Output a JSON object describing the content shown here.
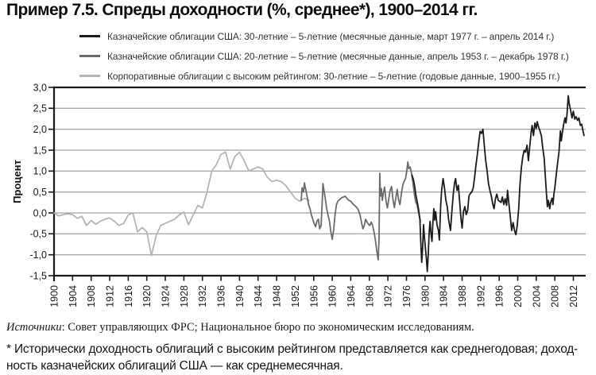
{
  "title": "Пример 7.5. Спреды доходности (%, среднее*), 1900–2014 гг.",
  "legend": [
    {
      "label": "Казначейские облигации США: 30-летние – 5-летние (месячные данные, март 1977 г. – апрель 2014 г.)",
      "color": "#1b1b1b"
    },
    {
      "label": "Казначейские облигации США: 20-летние – 5-летние (месячные данные, апрель 1953 г. – декабрь 1978 г.)",
      "color": "#6b6b6b"
    },
    {
      "label": "Корпоративные облигации с высоким рейтингом: 30-летние – 5-летние (годовые данные, 1900–1955 гг.)",
      "color": "#b5b5b5"
    }
  ],
  "source": {
    "prefix": "Источники",
    "text": ": Совет управляющих ФРС; Национальное бюро по экономическим исследованиям."
  },
  "footnote": {
    "line1": "* Исторически доходность облигаций с высоким рейтингом представляется как среднегодовая; доход-",
    "line2": "ность казначейских облигаций США — как среднемесячная."
  },
  "chart_data": {
    "type": "line",
    "title": "Пример 7.5. Спреды доходности (%, среднее*), 1900–2014 гг.",
    "xlabel": "",
    "ylabel": "Процент",
    "ylim": [
      -1.5,
      3.0
    ],
    "xlim": [
      1900,
      2014.5
    ],
    "grid": true,
    "legend_position": "top",
    "y_tick_values": [
      3.0,
      2.5,
      2.0,
      1.5,
      1.0,
      0.5,
      0.0,
      -0.5,
      -1.0,
      -1.5
    ],
    "y_tick_labels": [
      "3,0",
      "2,5",
      "2,0",
      "1,5",
      "1,0",
      "0,5",
      "0,0",
      "-0,5",
      "-1,0",
      "-1,5"
    ],
    "x_ticks": [
      1900,
      1904,
      1908,
      1912,
      1916,
      1920,
      1924,
      1928,
      1932,
      1936,
      1940,
      1944,
      1948,
      1952,
      1956,
      1960,
      1964,
      1968,
      1972,
      1976,
      1980,
      1984,
      1988,
      1992,
      1996,
      2000,
      2004,
      2008,
      2012
    ],
    "series": [
      {
        "id": "corporate-30y-5y",
        "name": "Корпоративные облигации с высоким рейтингом: 30-летние – 5-летние (годовые данные, 1900–1955 гг.)",
        "color": "#b5b5b5",
        "x": [
          1900,
          1901,
          1902,
          1903,
          1904,
          1905,
          1906,
          1907,
          1908,
          1909,
          1910,
          1911,
          1912,
          1913,
          1914,
          1915,
          1916,
          1917,
          1918,
          1919,
          1920,
          1921,
          1922,
          1923,
          1924,
          1925,
          1926,
          1927,
          1928,
          1929,
          1930,
          1931,
          1932,
          1933,
          1934,
          1935,
          1936,
          1937,
          1938,
          1939,
          1940,
          1941,
          1942,
          1943,
          1944,
          1945,
          1946,
          1947,
          1948,
          1949,
          1950,
          1951,
          1952,
          1953,
          1954,
          1955
        ],
        "y": [
          0.0,
          -0.07,
          -0.04,
          -0.02,
          -0.04,
          -0.13,
          -0.08,
          -0.3,
          -0.18,
          -0.27,
          -0.2,
          -0.15,
          -0.12,
          -0.2,
          -0.3,
          -0.25,
          -0.05,
          0.0,
          -0.45,
          -0.35,
          -0.45,
          -1.02,
          -0.55,
          -0.3,
          -0.25,
          -0.2,
          -0.15,
          -0.05,
          0.02,
          -0.28,
          -0.05,
          0.18,
          0.12,
          0.5,
          1.0,
          1.15,
          1.4,
          1.45,
          1.05,
          1.35,
          1.45,
          1.25,
          1.0,
          1.05,
          1.1,
          1.05,
          0.85,
          0.75,
          0.78,
          0.75,
          0.65,
          0.5,
          0.35,
          0.28,
          0.35,
          0.3
        ]
      },
      {
        "id": "treasury-20y-5y",
        "name": "Казначейские облигации США: 20-летние – 5-летние (месячные данные, апрель 1953 г. – декабрь 1978 г.)",
        "color": "#6b6b6b",
        "x": [
          1953.3,
          1953.5,
          1953.8,
          1954.0,
          1954.3,
          1954.6,
          1954.9,
          1955.2,
          1955.5,
          1955.8,
          1956.1,
          1956.4,
          1956.7,
          1957.0,
          1957.3,
          1957.6,
          1957.9,
          1958.0,
          1958.2,
          1958.5,
          1958.8,
          1959.1,
          1959.4,
          1959.7,
          1960.0,
          1960.3,
          1960.6,
          1960.9,
          1961.2,
          1961.6,
          1962.0,
          1962.4,
          1962.8,
          1963.2,
          1963.6,
          1964.0,
          1964.4,
          1964.8,
          1965.2,
          1965.6,
          1966.0,
          1966.3,
          1966.6,
          1966.9,
          1967.2,
          1967.5,
          1967.8,
          1968.1,
          1968.4,
          1968.7,
          1969.0,
          1969.3,
          1969.6,
          1969.9,
          1970.1,
          1970.25,
          1970.4,
          1970.6,
          1970.8,
          1971.0,
          1971.3,
          1971.6,
          1971.9,
          1972.2,
          1972.5,
          1972.8,
          1973.1,
          1973.4,
          1973.7,
          1974.0,
          1974.3,
          1974.6,
          1974.9,
          1975.2,
          1975.5,
          1975.8,
          1976.1,
          1976.3,
          1976.5,
          1976.8,
          1977.1,
          1977.4,
          1977.7,
          1978.0,
          1978.3,
          1978.6,
          1979.0
        ],
        "y": [
          0.3,
          0.6,
          0.5,
          0.72,
          0.55,
          0.38,
          0.2,
          0.1,
          -0.05,
          -0.15,
          -0.25,
          -0.33,
          -0.2,
          -0.15,
          -0.38,
          -0.3,
          0.4,
          0.7,
          0.55,
          0.35,
          0.1,
          -0.05,
          -0.2,
          -0.45,
          -0.63,
          -0.4,
          -0.05,
          0.2,
          0.28,
          0.32,
          0.36,
          0.38,
          0.4,
          0.34,
          0.3,
          0.28,
          0.22,
          0.18,
          0.14,
          0.08,
          -0.05,
          -0.22,
          -0.38,
          -0.3,
          -0.15,
          -0.22,
          -0.27,
          -0.3,
          -0.22,
          -0.3,
          -0.45,
          -0.65,
          -0.9,
          -1.12,
          -0.6,
          0.95,
          0.4,
          0.58,
          0.3,
          0.45,
          0.62,
          0.28,
          0.12,
          0.35,
          0.55,
          0.63,
          0.32,
          0.13,
          0.35,
          0.56,
          0.32,
          0.2,
          0.45,
          0.66,
          0.75,
          0.82,
          1.02,
          1.22,
          1.06,
          1.1,
          0.94,
          0.72,
          0.45,
          0.26,
          0.2,
          0.02,
          -0.19
        ]
      },
      {
        "id": "treasury-30y-5y",
        "name": "Казначейские облигации США: 30-летние – 5-летние (месячные данные, март 1977 г. – апрель 2014 г.)",
        "color": "#1b1b1b",
        "x": [
          1977.2,
          1977.5,
          1977.8,
          1978.0,
          1978.3,
          1978.6,
          1978.9,
          1979.1,
          1979.3,
          1979.5,
          1979.7,
          1979.9,
          1980.1,
          1980.3,
          1980.5,
          1980.7,
          1980.9,
          1981.1,
          1981.3,
          1981.5,
          1981.7,
          1981.9,
          1982.1,
          1982.3,
          1982.6,
          1982.9,
          1983.1,
          1983.4,
          1983.6,
          1983.9,
          1984.2,
          1984.5,
          1984.8,
          1985.1,
          1985.5,
          1985.8,
          1986.1,
          1986.4,
          1986.6,
          1986.9,
          1987.2,
          1987.5,
          1987.8,
          1988.0,
          1988.3,
          1988.6,
          1988.9,
          1989.2,
          1989.5,
          1989.8,
          1990.1,
          1990.4,
          1990.7,
          1991.0,
          1991.3,
          1991.6,
          1991.9,
          1992.2,
          1992.5,
          1992.8,
          1993.1,
          1993.4,
          1993.7,
          1994.0,
          1994.3,
          1994.6,
          1994.9,
          1995.2,
          1995.5,
          1995.8,
          1996.1,
          1996.4,
          1996.7,
          1997.0,
          1997.3,
          1997.6,
          1997.8,
          1998.1,
          1998.4,
          1998.7,
          1999.0,
          1999.3,
          1999.6,
          1999.9,
          2000.2,
          2000.5,
          2000.8,
          2001.1,
          2001.4,
          2001.7,
          2002.0,
          2002.3,
          2002.6,
          2002.9,
          2003.1,
          2003.4,
          2003.7,
          2004.0,
          2004.2,
          2004.5,
          2004.8,
          2005.1,
          2005.4,
          2005.7,
          2006.0,
          2006.2,
          2006.4,
          2006.6,
          2006.9,
          2007.1,
          2007.4,
          2007.6,
          2007.8,
          2008.0,
          2008.3,
          2008.6,
          2008.9,
          2009.2,
          2009.4,
          2009.6,
          2009.9,
          2010.2,
          2010.4,
          2010.6,
          2010.9,
          2011.1,
          2011.4,
          2011.7,
          2012.0,
          2012.3,
          2012.6,
          2012.9,
          2013.2,
          2013.5,
          2013.8,
          2014.0,
          2014.3
        ],
        "y": [
          0.9,
          0.8,
          0.62,
          0.45,
          0.28,
          0.1,
          -0.15,
          -0.7,
          -1.18,
          -0.8,
          -0.28,
          -0.6,
          -0.85,
          -1.1,
          -1.4,
          -1.0,
          -0.45,
          -0.2,
          -0.5,
          -0.68,
          -0.25,
          0.1,
          -0.17,
          0.03,
          -0.29,
          -0.42,
          -0.65,
          0.2,
          0.55,
          0.82,
          0.6,
          0.3,
          0.15,
          -0.17,
          -0.42,
          0.03,
          0.45,
          0.73,
          0.82,
          0.54,
          0.66,
          0.22,
          -0.17,
          -0.36,
          0.03,
          0.15,
          -0.04,
          0.06,
          0.41,
          0.47,
          0.5,
          0.6,
          0.85,
          1.15,
          1.4,
          1.7,
          1.95,
          1.9,
          2.0,
          1.6,
          1.25,
          1.0,
          0.7,
          0.54,
          0.41,
          0.22,
          0.1,
          0.34,
          0.45,
          0.3,
          0.28,
          0.25,
          0.38,
          0.2,
          0.34,
          0.18,
          0.54,
          0.22,
          -0.1,
          -0.42,
          -0.23,
          -0.42,
          -0.52,
          -0.3,
          0.1,
          0.7,
          1.1,
          1.35,
          1.5,
          1.45,
          1.62,
          1.25,
          1.6,
          1.93,
          2.09,
          1.85,
          2.15,
          2.02,
          2.18,
          2.05,
          1.96,
          1.84,
          1.55,
          1.3,
          0.8,
          0.45,
          0.15,
          0.3,
          0.1,
          0.25,
          0.35,
          0.2,
          0.45,
          0.6,
          0.9,
          1.2,
          1.45,
          1.96,
          1.72,
          1.9,
          2.12,
          2.27,
          2.15,
          2.33,
          2.8,
          2.61,
          2.46,
          2.27,
          2.43,
          2.24,
          2.3,
          2.21,
          2.27,
          2.09,
          2.12,
          2.0,
          1.85
        ]
      }
    ]
  }
}
